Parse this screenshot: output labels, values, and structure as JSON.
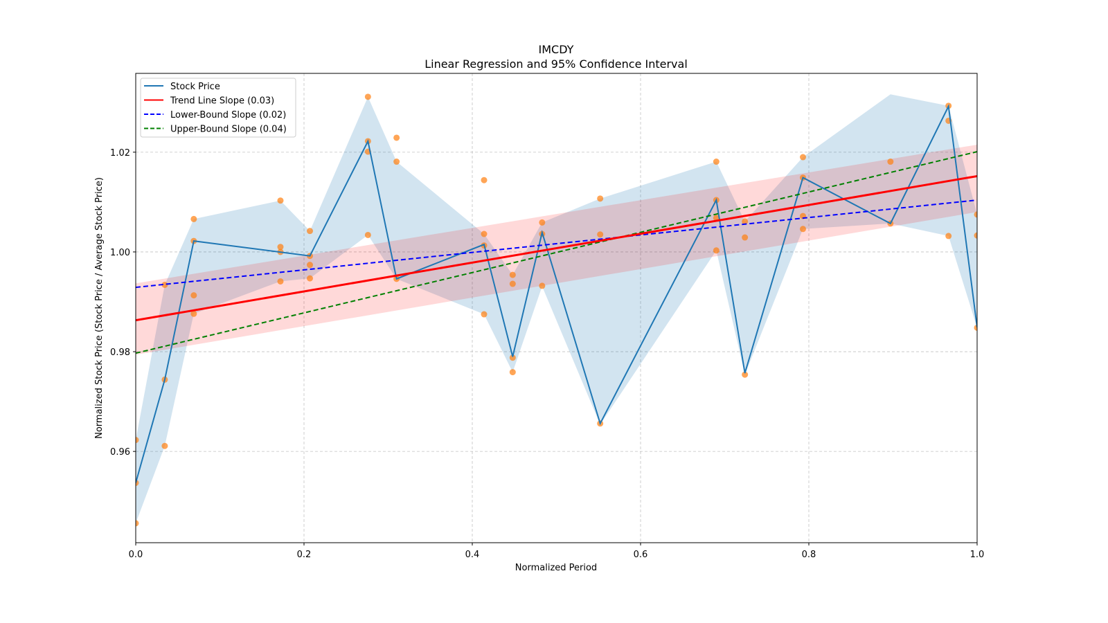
{
  "chart_data": {
    "type": "line",
    "title": "IMCDY",
    "subtitle": "Linear Regression and 95% Confidence Interval",
    "xlabel": "Normalized Period",
    "ylabel": "Normalized Stock Price (Stock Price / Average Stock Price)",
    "xlim": [
      0.0,
      1.0
    ],
    "ylim": [
      0.9417,
      1.0358
    ],
    "xticks": [
      0.0,
      0.2,
      0.4,
      0.6,
      0.8,
      1.0
    ],
    "xtick_labels": [
      "0.0",
      "0.2",
      "0.4",
      "0.6",
      "0.8",
      "1.0"
    ],
    "yticks": [
      0.96,
      0.98,
      1.0,
      1.02
    ],
    "ytick_labels": [
      "0.96",
      "0.98",
      "1.00",
      "1.02"
    ],
    "grid": true,
    "legend_position": "top-left",
    "colors": {
      "stock": "#1f77b4",
      "band": "#1f77b4",
      "scatter": "#ff7f0e",
      "trend": "#ff0000",
      "trend_ci": "#ff0000",
      "lower": "#0000ff",
      "upper": "#008000"
    },
    "legend": [
      {
        "label": "Stock Price",
        "style": "solid",
        "color_key": "stock"
      },
      {
        "label": "Trend Line Slope (0.03)",
        "style": "solid",
        "color_key": "trend"
      },
      {
        "label": "Lower-Bound Slope (0.02)",
        "style": "dashed",
        "color_key": "lower"
      },
      {
        "label": "Upper-Bound Slope (0.04)",
        "style": "dashed",
        "color_key": "upper"
      }
    ],
    "series": [
      {
        "name": "Stock Price",
        "x": [
          0.0,
          0.0345,
          0.069,
          0.207,
          0.276,
          0.31,
          0.414,
          0.448,
          0.483,
          0.552,
          0.69,
          0.724,
          0.793,
          0.897,
          0.966,
          1.0
        ],
        "y": [
          0.9537,
          0.9744,
          1.0022,
          0.9992,
          1.0222,
          0.9946,
          1.0015,
          0.979,
          1.0039,
          0.9656,
          1.0104,
          0.9757,
          1.0149,
          1.0057,
          1.0292,
          0.9849
        ]
      }
    ],
    "band": {
      "name": "Stock Price Range",
      "x": [
        0.0,
        0.0345,
        0.069,
        0.172,
        0.207,
        0.276,
        0.31,
        0.414,
        0.448,
        0.483,
        0.552,
        0.69,
        0.724,
        0.793,
        0.897,
        0.966,
        1.0
      ],
      "upper": [
        0.9623,
        0.9934,
        1.0066,
        1.0103,
        1.0042,
        1.0311,
        1.0181,
        1.0036,
        0.9954,
        1.0059,
        1.0107,
        1.0181,
        1.0061,
        1.019,
        1.0316,
        1.0293,
        1.0075
      ],
      "lower": [
        0.9456,
        0.9611,
        0.9876,
        0.9941,
        0.9947,
        1.0034,
        0.9946,
        0.9875,
        0.9759,
        0.9931,
        0.9654,
        1.0003,
        0.9754,
        1.0046,
        1.0057,
        1.0032,
        0.9848
      ]
    },
    "scatter": {
      "name": "Observations",
      "points": [
        [
          0.0,
          0.9623
        ],
        [
          0.0,
          0.9537
        ],
        [
          0.0,
          0.9456
        ],
        [
          0.0345,
          0.9934
        ],
        [
          0.0345,
          0.9744
        ],
        [
          0.0345,
          0.9611
        ],
        [
          0.069,
          1.0066
        ],
        [
          0.069,
          1.0022
        ],
        [
          0.069,
          0.9913
        ],
        [
          0.069,
          0.9876
        ],
        [
          0.172,
          1.0103
        ],
        [
          0.172,
          1.001
        ],
        [
          0.172,
          1.0
        ],
        [
          0.172,
          0.9941
        ],
        [
          0.207,
          1.0042
        ],
        [
          0.207,
          0.9992
        ],
        [
          0.207,
          0.9974
        ],
        [
          0.207,
          0.9947
        ],
        [
          0.276,
          1.0311
        ],
        [
          0.276,
          1.0222
        ],
        [
          0.276,
          1.0201
        ],
        [
          0.276,
          1.0034
        ],
        [
          0.31,
          1.0229
        ],
        [
          0.31,
          1.0181
        ],
        [
          0.31,
          0.9946
        ],
        [
          0.414,
          1.0144
        ],
        [
          0.414,
          1.0036
        ],
        [
          0.414,
          1.0013
        ],
        [
          0.414,
          0.9875
        ],
        [
          0.448,
          0.9954
        ],
        [
          0.448,
          0.9936
        ],
        [
          0.448,
          0.9788
        ],
        [
          0.448,
          0.9759
        ],
        [
          0.483,
          1.0059
        ],
        [
          0.483,
          1.0036
        ],
        [
          0.483,
          0.9932
        ],
        [
          0.552,
          1.0107
        ],
        [
          0.552,
          1.0035
        ],
        [
          0.552,
          0.9656
        ],
        [
          0.69,
          1.0181
        ],
        [
          0.69,
          1.0104
        ],
        [
          0.69,
          1.0068
        ],
        [
          0.69,
          1.0003
        ],
        [
          0.724,
          1.0061
        ],
        [
          0.724,
          1.0029
        ],
        [
          0.724,
          0.9754
        ],
        [
          0.793,
          1.019
        ],
        [
          0.793,
          1.0149
        ],
        [
          0.793,
          1.0072
        ],
        [
          0.793,
          1.0046
        ],
        [
          0.897,
          1.0181
        ],
        [
          0.897,
          1.0057
        ],
        [
          0.966,
          1.0293
        ],
        [
          0.966,
          1.0263
        ],
        [
          0.966,
          1.0032
        ],
        [
          1.0,
          1.0075
        ],
        [
          1.0,
          1.0033
        ],
        [
          1.0,
          0.9848
        ]
      ]
    },
    "trend_line": {
      "name": "Trend Line Slope (0.03)",
      "slope": 0.0289,
      "intercept": 0.9863
    },
    "trend_ci": {
      "lower_start": 0.9794,
      "lower_end": 1.008,
      "upper_start": 0.9937,
      "upper_end": 1.0215
    },
    "lower_bound_line": {
      "name": "Lower-Bound Slope (0.02)",
      "slope": 0.0175,
      "intercept": 0.9929
    },
    "upper_bound_line": {
      "name": "Upper-Bound Slope (0.04)",
      "slope": 0.0404,
      "intercept": 0.9797
    }
  }
}
